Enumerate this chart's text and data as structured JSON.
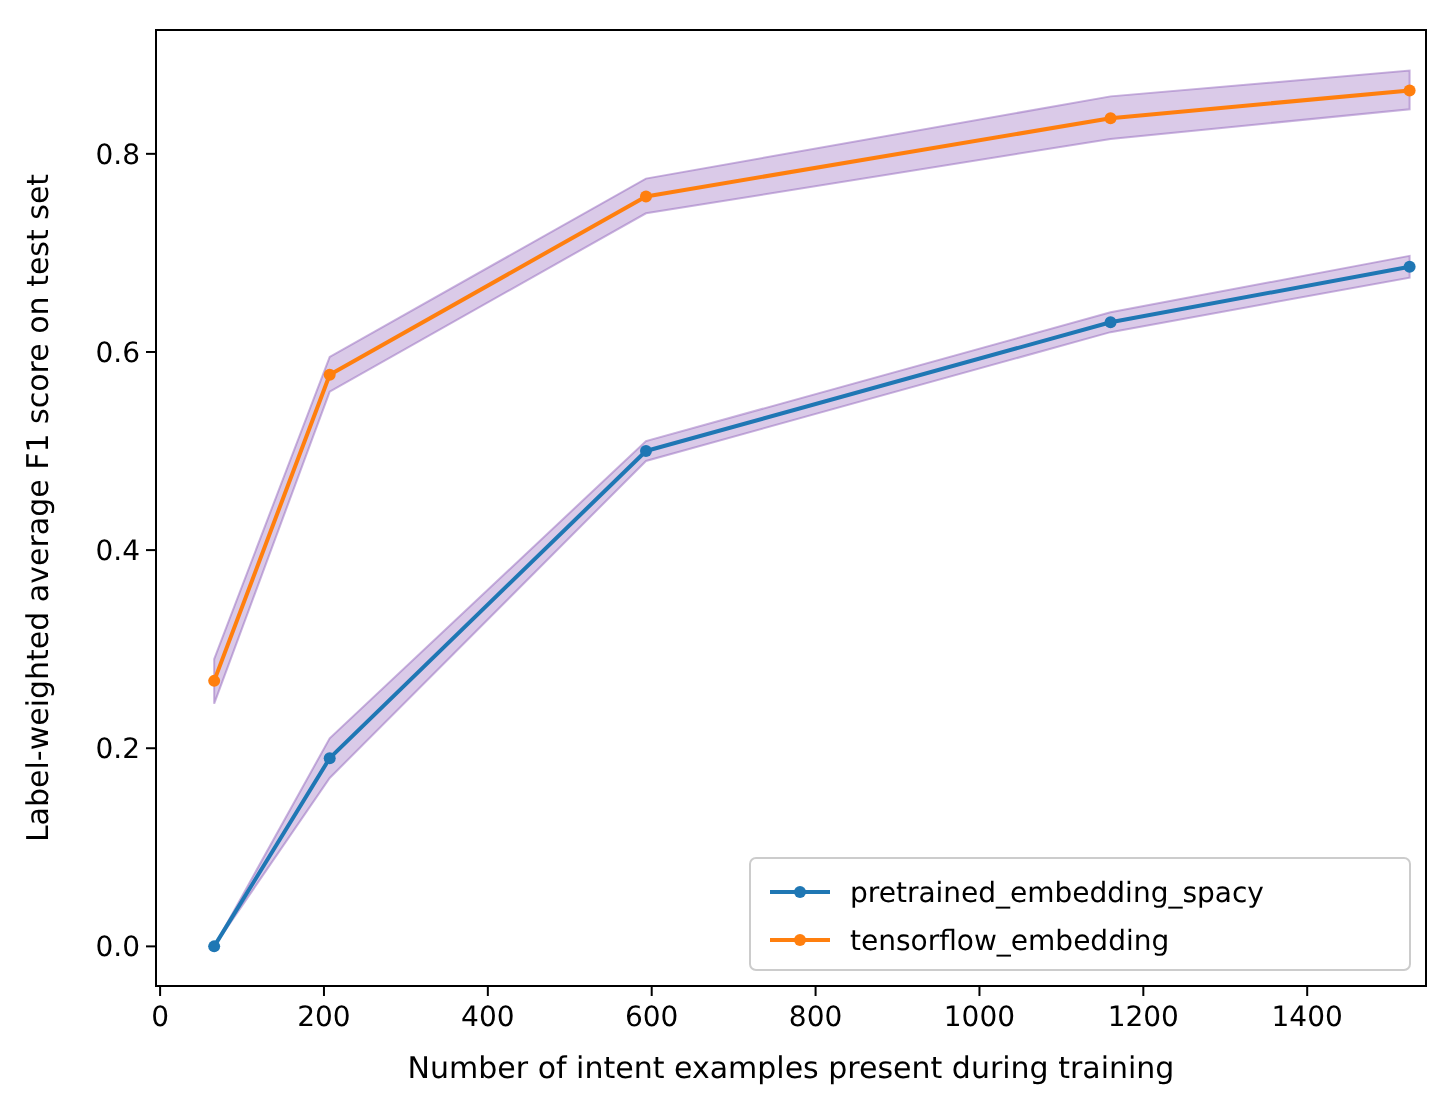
{
  "chart_data": {
    "type": "line",
    "xlabel": "Number of intent examples present during training",
    "ylabel": "Label-weighted average F1 score on test set",
    "x": [
      66,
      207,
      593,
      1160,
      1525
    ],
    "series": [
      {
        "name": "pretrained_embedding_spacy",
        "color": "#1f77b4",
        "values": [
          0,
          0.19,
          0.5,
          0.63,
          0.686
        ],
        "lower": [
          0,
          0.17,
          0.49,
          0.62,
          0.675
        ],
        "upper": [
          0,
          0.21,
          0.51,
          0.64,
          0.697
        ]
      },
      {
        "name": "tensorflow_embedding",
        "color": "#ff7f0e",
        "values": [
          0.268,
          0.577,
          0.757,
          0.836,
          0.864
        ],
        "lower": [
          0.245,
          0.56,
          0.74,
          0.815,
          0.845
        ],
        "upper": [
          0.29,
          0.595,
          0.775,
          0.858,
          0.884
        ]
      }
    ],
    "xlim": [
      -5,
      1545
    ],
    "xticks": [
      0,
      200,
      400,
      600,
      800,
      1000,
      1200,
      1400
    ],
    "ylim": [
      -0.04,
      0.925
    ],
    "yticks": [
      {
        "value": 0,
        "label": "0.0"
      },
      0.2,
      0.4,
      0.6,
      0.8
    ],
    "legend": "bottom right",
    "marker": "circle",
    "line_style": "solid",
    "grid": false
  }
}
